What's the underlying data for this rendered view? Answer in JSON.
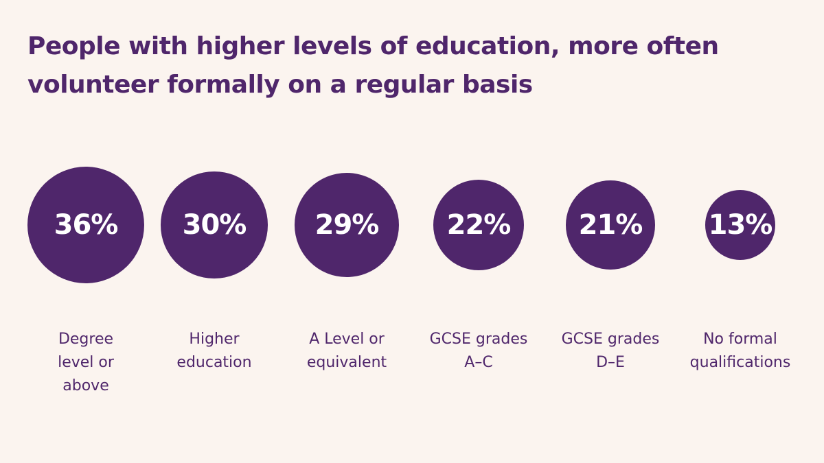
{
  "title": {
    "line1": "People with higher levels of education, more often",
    "line2": "volunteer formally on a regular basis"
  },
  "colors": {
    "background": "#FBF4EF",
    "bubble": "#4F266B",
    "bubble_text": "#FFFFFF",
    "label_text": "#4F266B"
  },
  "chart_data": {
    "type": "bubble",
    "title": "People with higher levels of education, more often volunteer formally on a regular basis",
    "categories": [
      "Degree level or above",
      "Higher education",
      "A Level or equivalent",
      "GCSE grades A–C",
      "GCSE grades D–E",
      "No formal qualifications"
    ],
    "values": [
      36,
      30,
      29,
      22,
      21,
      13
    ],
    "value_labels": [
      "36%",
      "30%",
      "29%",
      "22%",
      "21%",
      "13%"
    ],
    "category_labels_wrapped": [
      "Degree\nlevel or\nabove",
      "Higher\neducation",
      "A Level or\nequivalent",
      "GCSE grades\nA–C",
      "GCSE grades\nD–E",
      "No formal\nqualifications"
    ],
    "unit": "%"
  }
}
